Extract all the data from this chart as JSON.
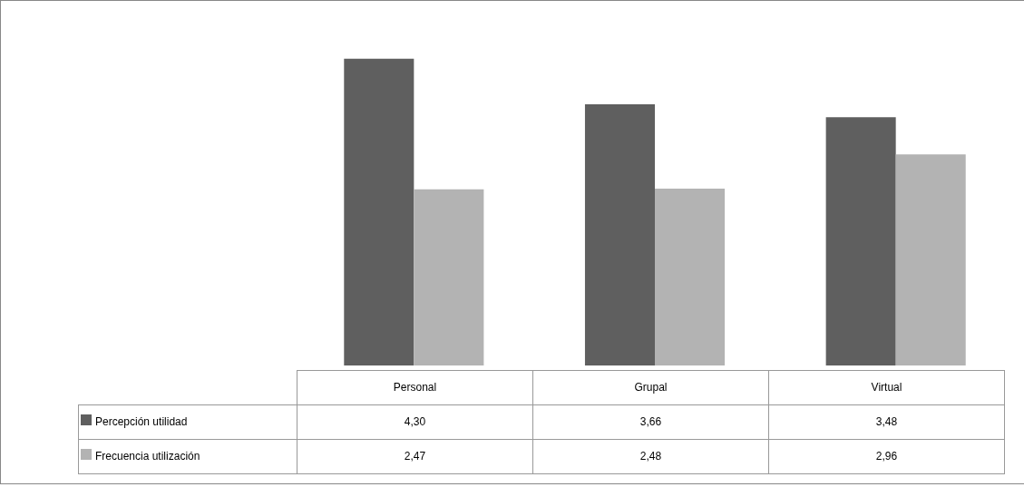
{
  "chart_data": {
    "type": "bar",
    "relative": false,
    "categories": [
      "Personal",
      "Grupal",
      "Virtual"
    ],
    "series": [
      {
        "name": "Percepción utilidad",
        "color": "#5f5f5f",
        "values": [
          4.3,
          3.66,
          3.48
        ],
        "value_labels": [
          "4,30",
          "3,66",
          "3,48"
        ]
      },
      {
        "name": "Frecuencia utilización",
        "color": "#b3b3b3",
        "values": [
          2.47,
          2.48,
          2.96
        ],
        "value_labels": [
          "2,47",
          "2,48",
          "2,96"
        ]
      }
    ],
    "legend": "bottom",
    "grid": false,
    "tick_labels": false
  }
}
